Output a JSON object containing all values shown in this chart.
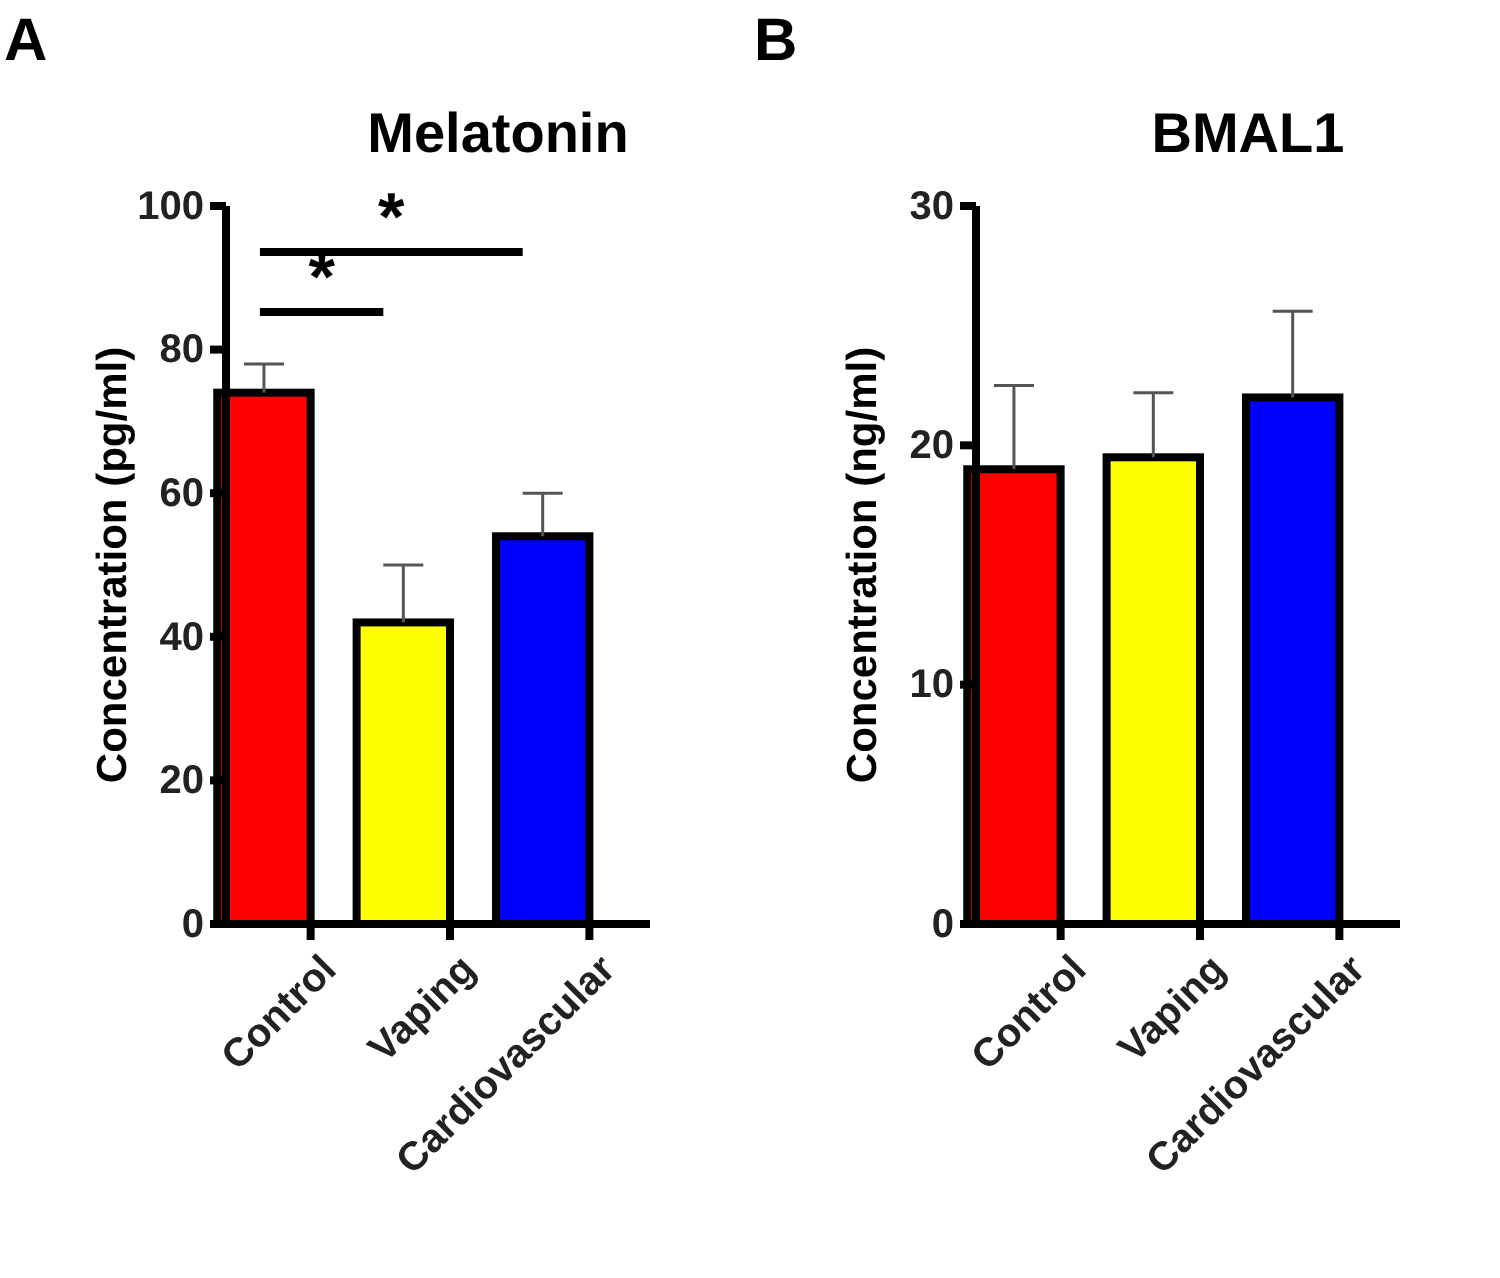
{
  "chart_data": [
    {
      "type": "bar",
      "title": "Melatonin",
      "ylabel": "Concentration (pg/ml)",
      "categories": [
        "Control",
        "Vaping",
        "Cardiovascular"
      ],
      "values": [
        74,
        42,
        54
      ],
      "colors": [
        "#ff0000",
        "#ffff00",
        "#0000ff"
      ],
      "errors": [
        [
          74,
          78
        ],
        [
          42,
          50
        ],
        [
          54,
          60
        ]
      ],
      "ylim": [
        0,
        100
      ],
      "yticks": [
        0,
        20,
        40,
        60,
        80,
        100
      ],
      "grid": false,
      "annotations": [
        "A",
        "*",
        "*"
      ]
    },
    {
      "type": "bar",
      "title": "BMAL1",
      "ylabel": "Concentration (ng/ml)",
      "categories": [
        "Control",
        "Vaping",
        "Cardiovascular"
      ],
      "values": [
        19,
        19.5,
        22
      ],
      "colors": [
        "#ff0000",
        "#ffff00",
        "#0000ff"
      ],
      "errors": [
        [
          19,
          22.5
        ],
        [
          19.5,
          22.2
        ],
        [
          22,
          25.6
        ]
      ],
      "ylim": [
        0,
        30
      ],
      "yticks": [
        0,
        10,
        20,
        30
      ],
      "grid": false,
      "annotations": [
        "B"
      ]
    }
  ]
}
